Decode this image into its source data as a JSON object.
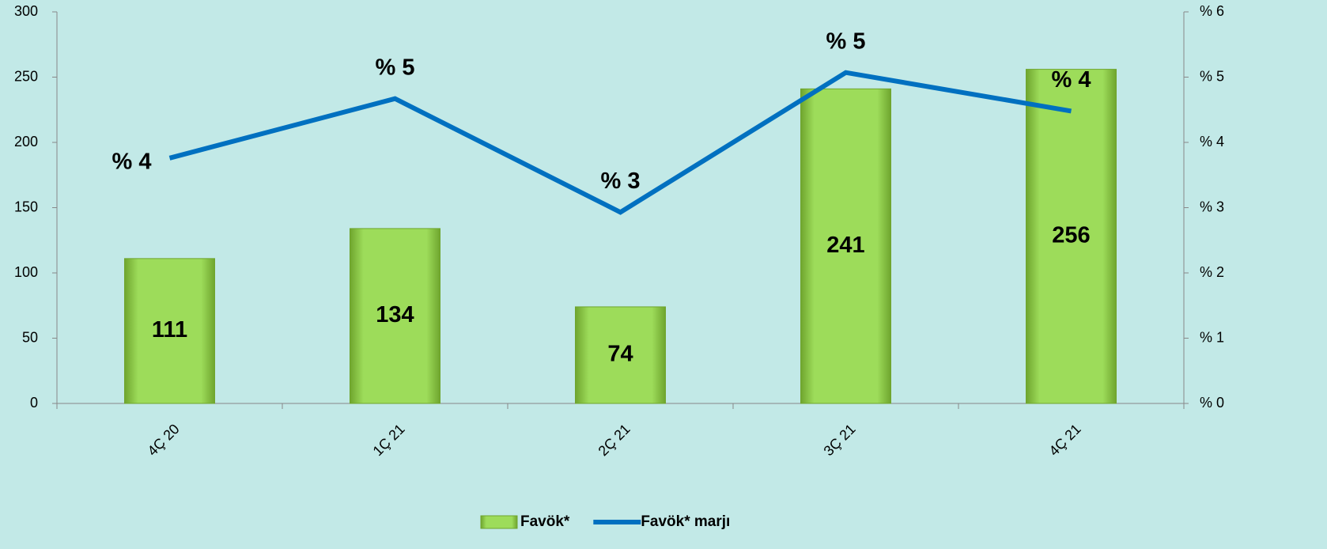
{
  "chart_data": {
    "type": "bar_line",
    "categories": [
      "4Ç 20",
      "1Ç 21",
      "2Ç 21",
      "3Ç 21",
      "4Ç 21"
    ],
    "series": [
      {
        "name": "Favök*",
        "type": "bar",
        "color": "#92d050",
        "values": [
          111,
          134,
          74,
          241,
          256
        ]
      },
      {
        "name": "Favök* marjı",
        "type": "line",
        "axis": "y2",
        "color": "#0070c0",
        "values": [
          3.76,
          4.67,
          2.93,
          5.07,
          4.48
        ],
        "value_labels": [
          "% 4",
          "% 5",
          "% 3",
          "% 5",
          "% 4"
        ]
      }
    ],
    "ylim": [
      0,
      300
    ],
    "yticks": [
      0,
      50,
      100,
      150,
      200,
      250,
      300
    ],
    "y2lim": [
      0,
      6
    ],
    "y2ticks": [
      {
        "value": 0,
        "label": "% 0"
      },
      {
        "value": 1,
        "label": "% 1"
      },
      {
        "value": 2,
        "label": "% 2"
      },
      {
        "value": 3,
        "label": "% 3"
      },
      {
        "value": 4,
        "label": "% 4"
      },
      {
        "value": 5,
        "label": "% 5"
      },
      {
        "value": 6,
        "label": "% 6"
      }
    ],
    "legend": "bottom"
  }
}
